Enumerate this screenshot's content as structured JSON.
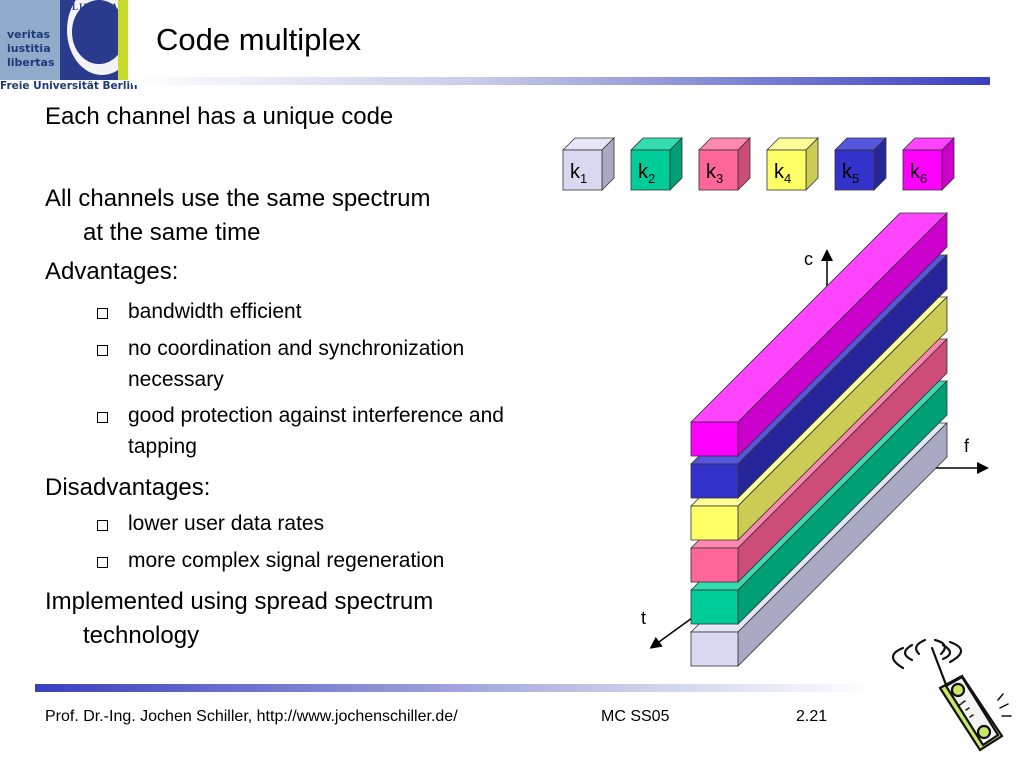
{
  "logo": {
    "motto": [
      "veritas",
      "iustitia",
      "libertas"
    ],
    "seal_text": "LIBERTAS",
    "name": "Freie Universität Berlin"
  },
  "title": "Code multiplex",
  "content": {
    "p1": "Each channel has a unique code",
    "p2a": "All channels use the same spectrum",
    "p2b": "at the same time",
    "advantages": "Advantages:",
    "adv": [
      "bandwidth efficient",
      "no coordination and synchronization",
      "necessary",
      "good protection against interference and",
      "tapping"
    ],
    "disadvantages": "Disadvantages:",
    "dis": [
      "lower user data rates",
      "more complex signal regeneration"
    ],
    "p5a": "Implemented using spread spectrum",
    "p5b": "technology"
  },
  "diagram": {
    "axes": {
      "c": "c",
      "f": "f",
      "t": "t"
    },
    "codes": [
      {
        "label": "k",
        "sub": "1",
        "front": "#d8d8f0",
        "side": "#a9a9c4",
        "top": "#e6e6f6"
      },
      {
        "label": "k",
        "sub": "2",
        "front": "#00cc99",
        "side": "#00a077",
        "top": "#33ddb0"
      },
      {
        "label": "k",
        "sub": "3",
        "front": "#ff6699",
        "side": "#cc4d77",
        "top": "#ff88b0"
      },
      {
        "label": "k",
        "sub": "4",
        "front": "#ffff66",
        "side": "#cccc55",
        "top": "#ffff99"
      },
      {
        "label": "k",
        "sub": "5",
        "front": "#3333cc",
        "side": "#26269a",
        "top": "#5555dd"
      },
      {
        "label": "k",
        "sub": "6",
        "front": "#ff00ff",
        "side": "#cc00cc",
        "top": "#ff44ff"
      }
    ]
  },
  "footer": {
    "author": "Prof. Dr.-Ing. Jochen Schiller, http://www.jochenschiller.de/",
    "course": "MC SS05",
    "page": "2.21"
  }
}
